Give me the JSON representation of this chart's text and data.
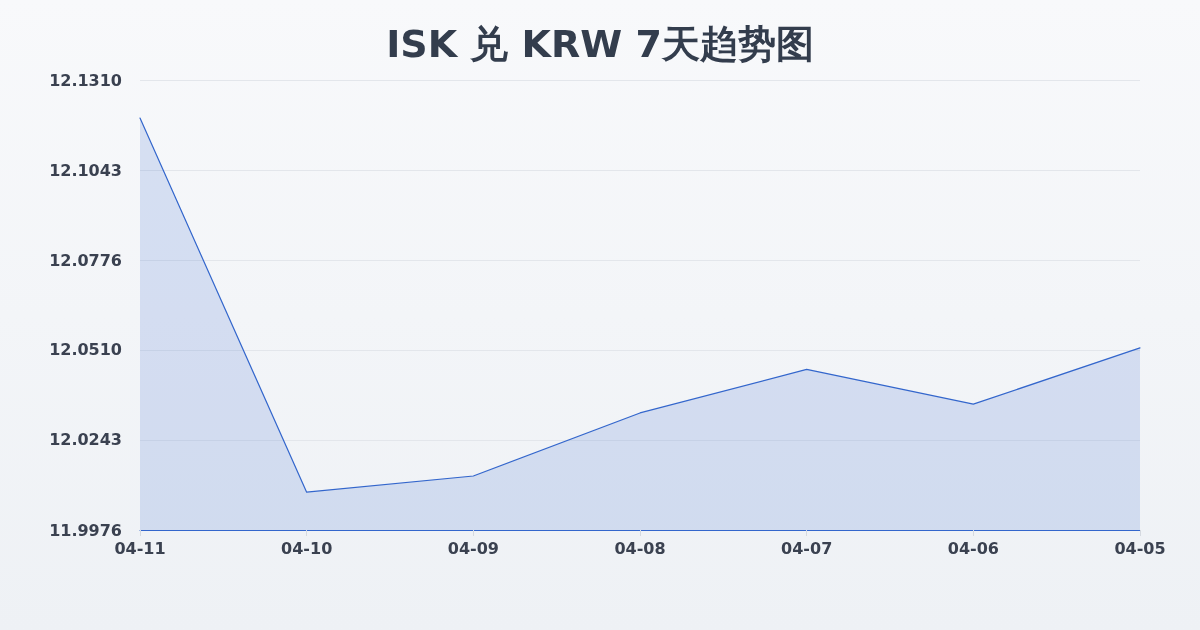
{
  "chart_data": {
    "type": "area",
    "title": "ISK 兑 KRW 7天趋势图",
    "categories": [
      "04-11",
      "04-10",
      "04-09",
      "04-08",
      "04-07",
      "04-06",
      "04-05"
    ],
    "series": [
      {
        "color": "#3366cc",
        "values": [
          12.1197,
          12.0088,
          12.0136,
          12.0323,
          12.0452,
          12.0349,
          12.0516
        ]
      }
    ],
    "ylim": [
      11.9976,
      12.131
    ],
    "yticks": [
      11.9976,
      12.0243,
      {
        "value": 12.051,
        "label": "12.0510"
      },
      12.0776,
      12.1043,
      {
        "value": 12.131,
        "label": "12.1310"
      }
    ],
    "grid": "y",
    "marker": "none"
  }
}
